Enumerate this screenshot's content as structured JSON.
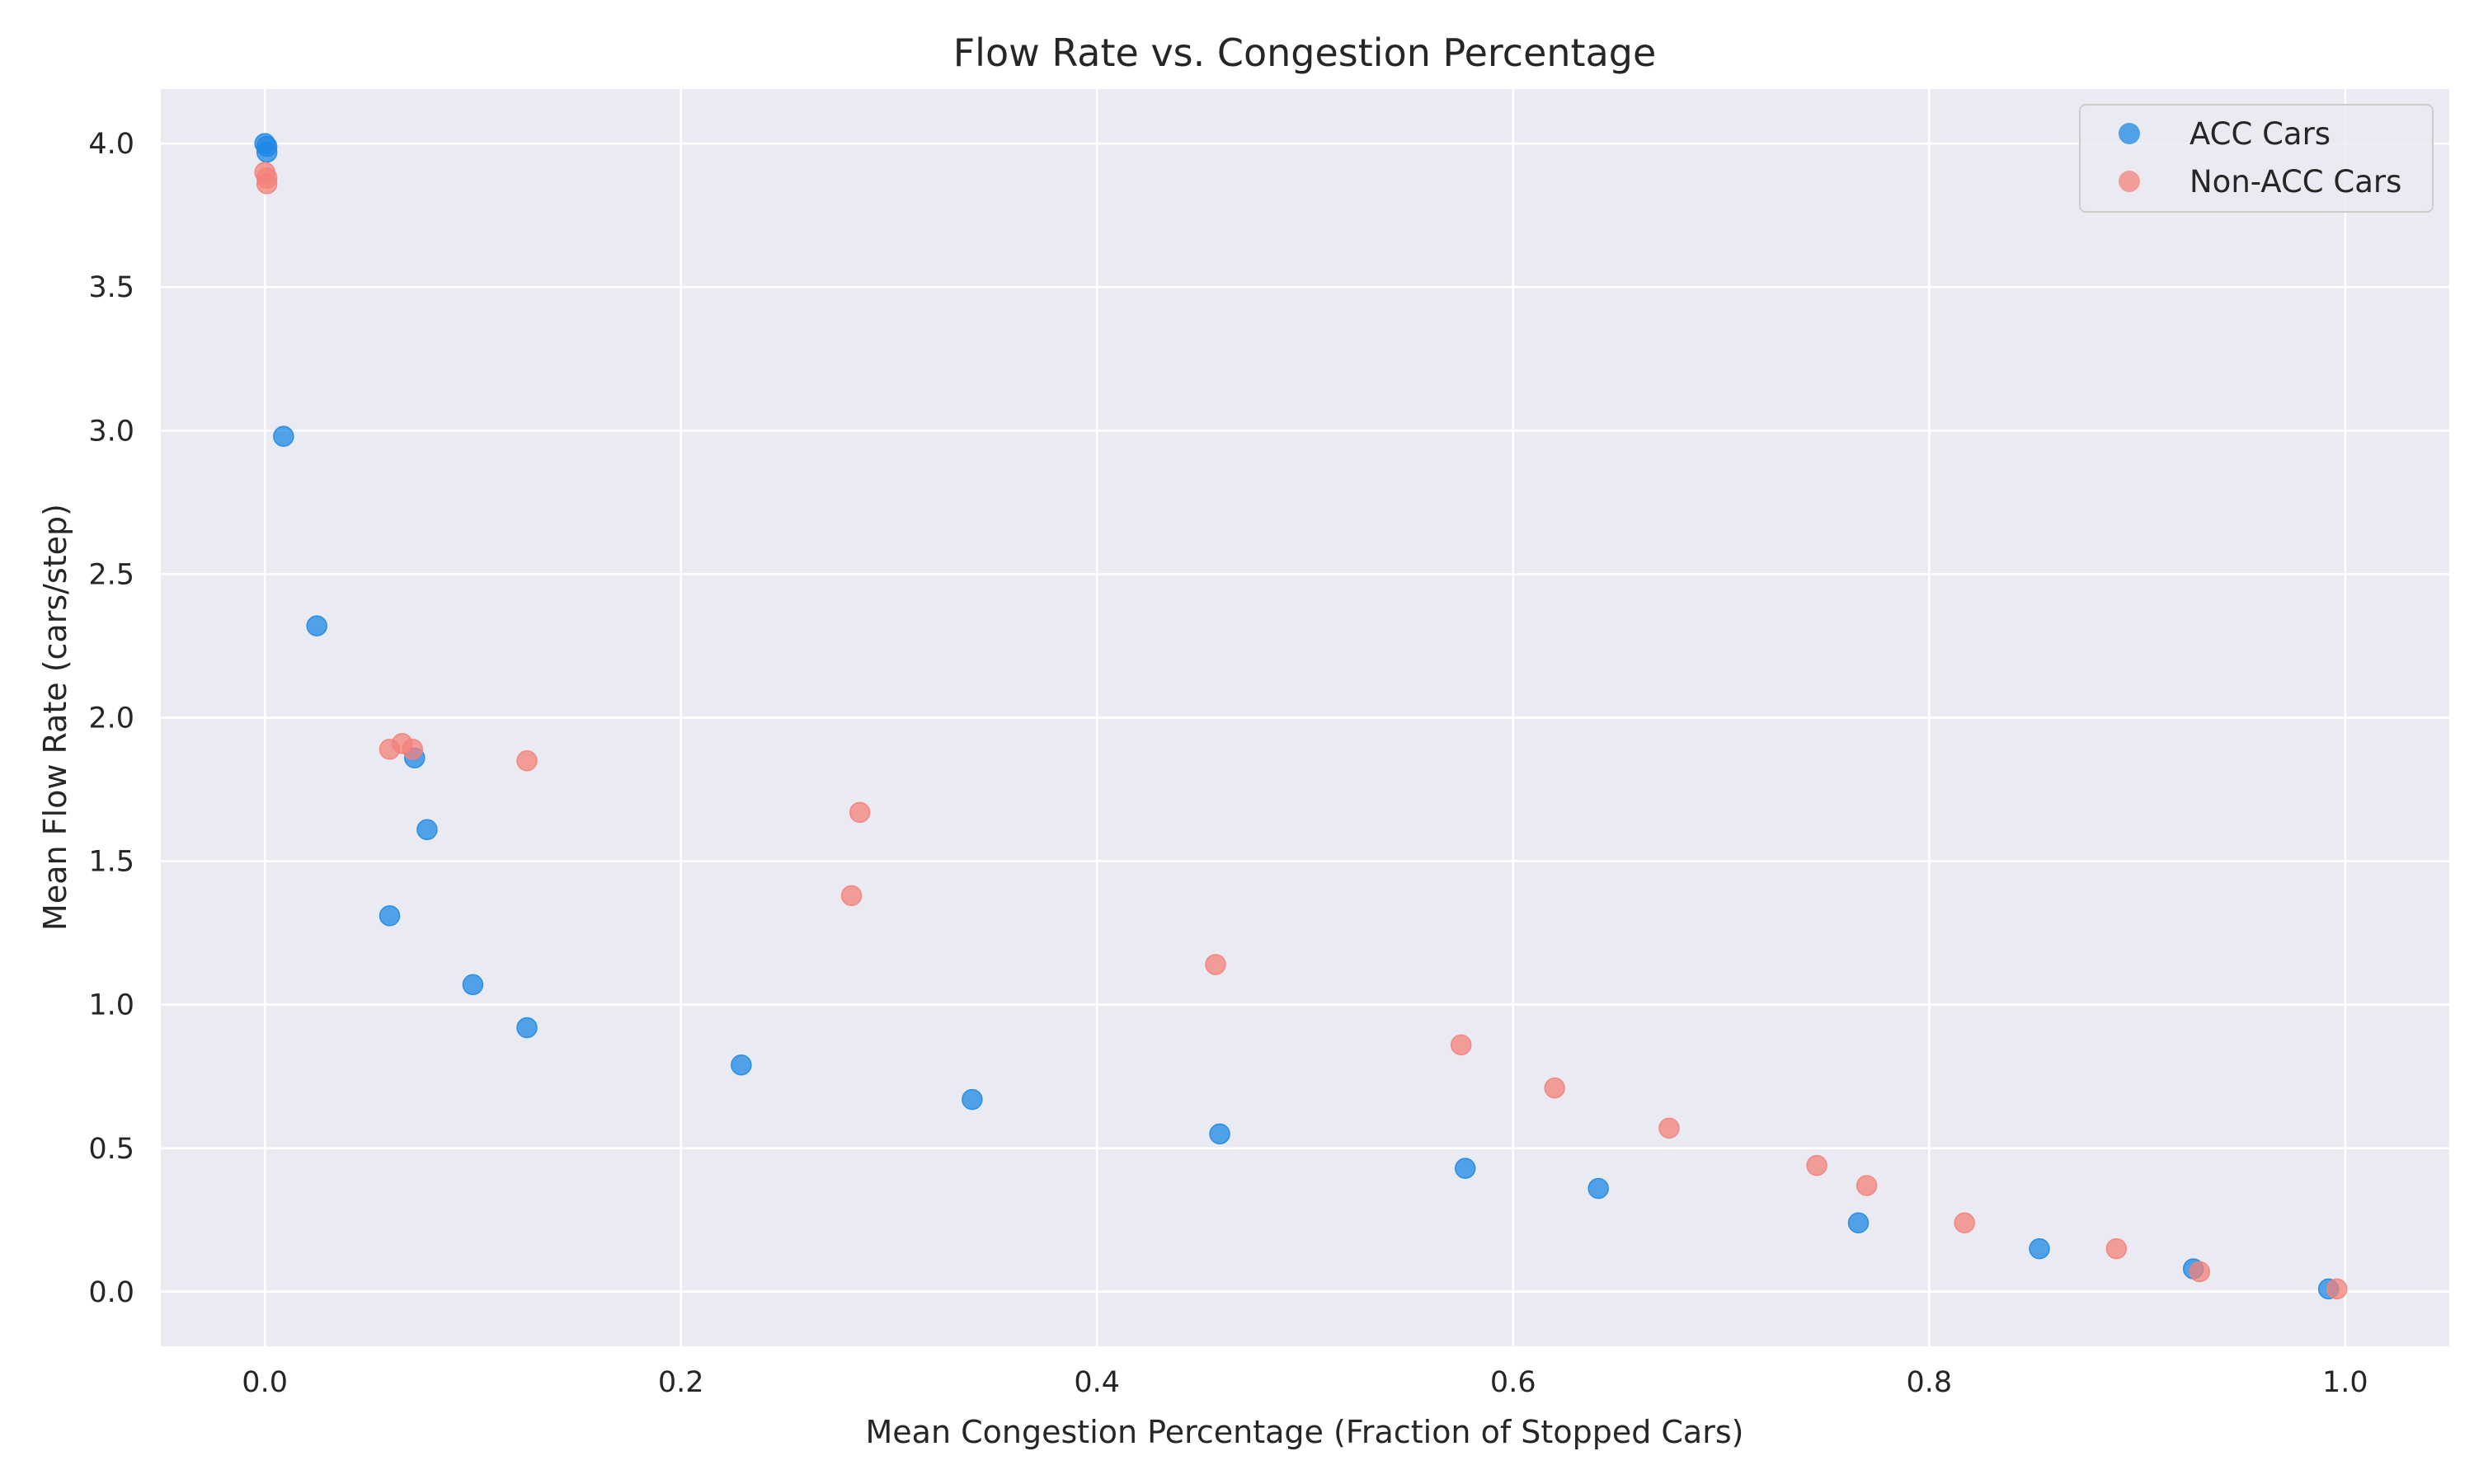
{
  "chart_data": {
    "type": "scatter",
    "title": "Flow Rate vs. Congestion Percentage",
    "xlabel": "Mean Congestion Percentage (Fraction of Stopped Cars)",
    "ylabel": "Mean Flow Rate (cars/step)",
    "xlim": [
      -0.05,
      1.05
    ],
    "ylim": [
      -0.19,
      4.19
    ],
    "x_ticks": [
      0.0,
      0.2,
      0.4,
      0.6,
      0.8,
      1.0
    ],
    "x_tick_labels": [
      "0.0",
      "0.2",
      "0.4",
      "0.6",
      "0.8",
      "1.0"
    ],
    "y_ticks": [
      0.0,
      0.5,
      1.0,
      1.5,
      2.0,
      2.5,
      3.0,
      3.5,
      4.0
    ],
    "y_tick_labels": [
      "0.0",
      "0.5",
      "1.0",
      "1.5",
      "2.0",
      "2.5",
      "3.0",
      "3.5",
      "4.0"
    ],
    "grid": true,
    "legend_position": "top-right",
    "background_color": "#eaeaf2",
    "series": [
      {
        "name": "ACC Cars",
        "color": "#1e88e5",
        "points": [
          [
            0.0,
            4.0
          ],
          [
            0.001,
            3.99
          ],
          [
            0.001,
            3.97
          ],
          [
            0.009,
            2.98
          ],
          [
            0.025,
            2.32
          ],
          [
            0.06,
            1.31
          ],
          [
            0.072,
            1.86
          ],
          [
            0.078,
            1.61
          ],
          [
            0.1,
            1.07
          ],
          [
            0.126,
            0.92
          ],
          [
            0.229,
            0.79
          ],
          [
            0.34,
            0.67
          ],
          [
            0.459,
            0.55
          ],
          [
            0.577,
            0.43
          ],
          [
            0.641,
            0.36
          ],
          [
            0.766,
            0.24
          ],
          [
            0.853,
            0.15
          ],
          [
            0.927,
            0.08
          ],
          [
            0.992,
            0.01
          ]
        ]
      },
      {
        "name": "Non-ACC Cars",
        "color": "#f4817a",
        "points": [
          [
            0.0,
            3.9
          ],
          [
            0.001,
            3.88
          ],
          [
            0.001,
            3.86
          ],
          [
            0.06,
            1.89
          ],
          [
            0.066,
            1.91
          ],
          [
            0.071,
            1.89
          ],
          [
            0.126,
            1.85
          ],
          [
            0.282,
            1.38
          ],
          [
            0.286,
            1.67
          ],
          [
            0.457,
            1.14
          ],
          [
            0.575,
            0.86
          ],
          [
            0.62,
            0.71
          ],
          [
            0.675,
            0.57
          ],
          [
            0.746,
            0.44
          ],
          [
            0.77,
            0.37
          ],
          [
            0.817,
            0.24
          ],
          [
            0.89,
            0.15
          ],
          [
            0.93,
            0.07
          ],
          [
            0.996,
            0.01
          ]
        ]
      }
    ]
  }
}
